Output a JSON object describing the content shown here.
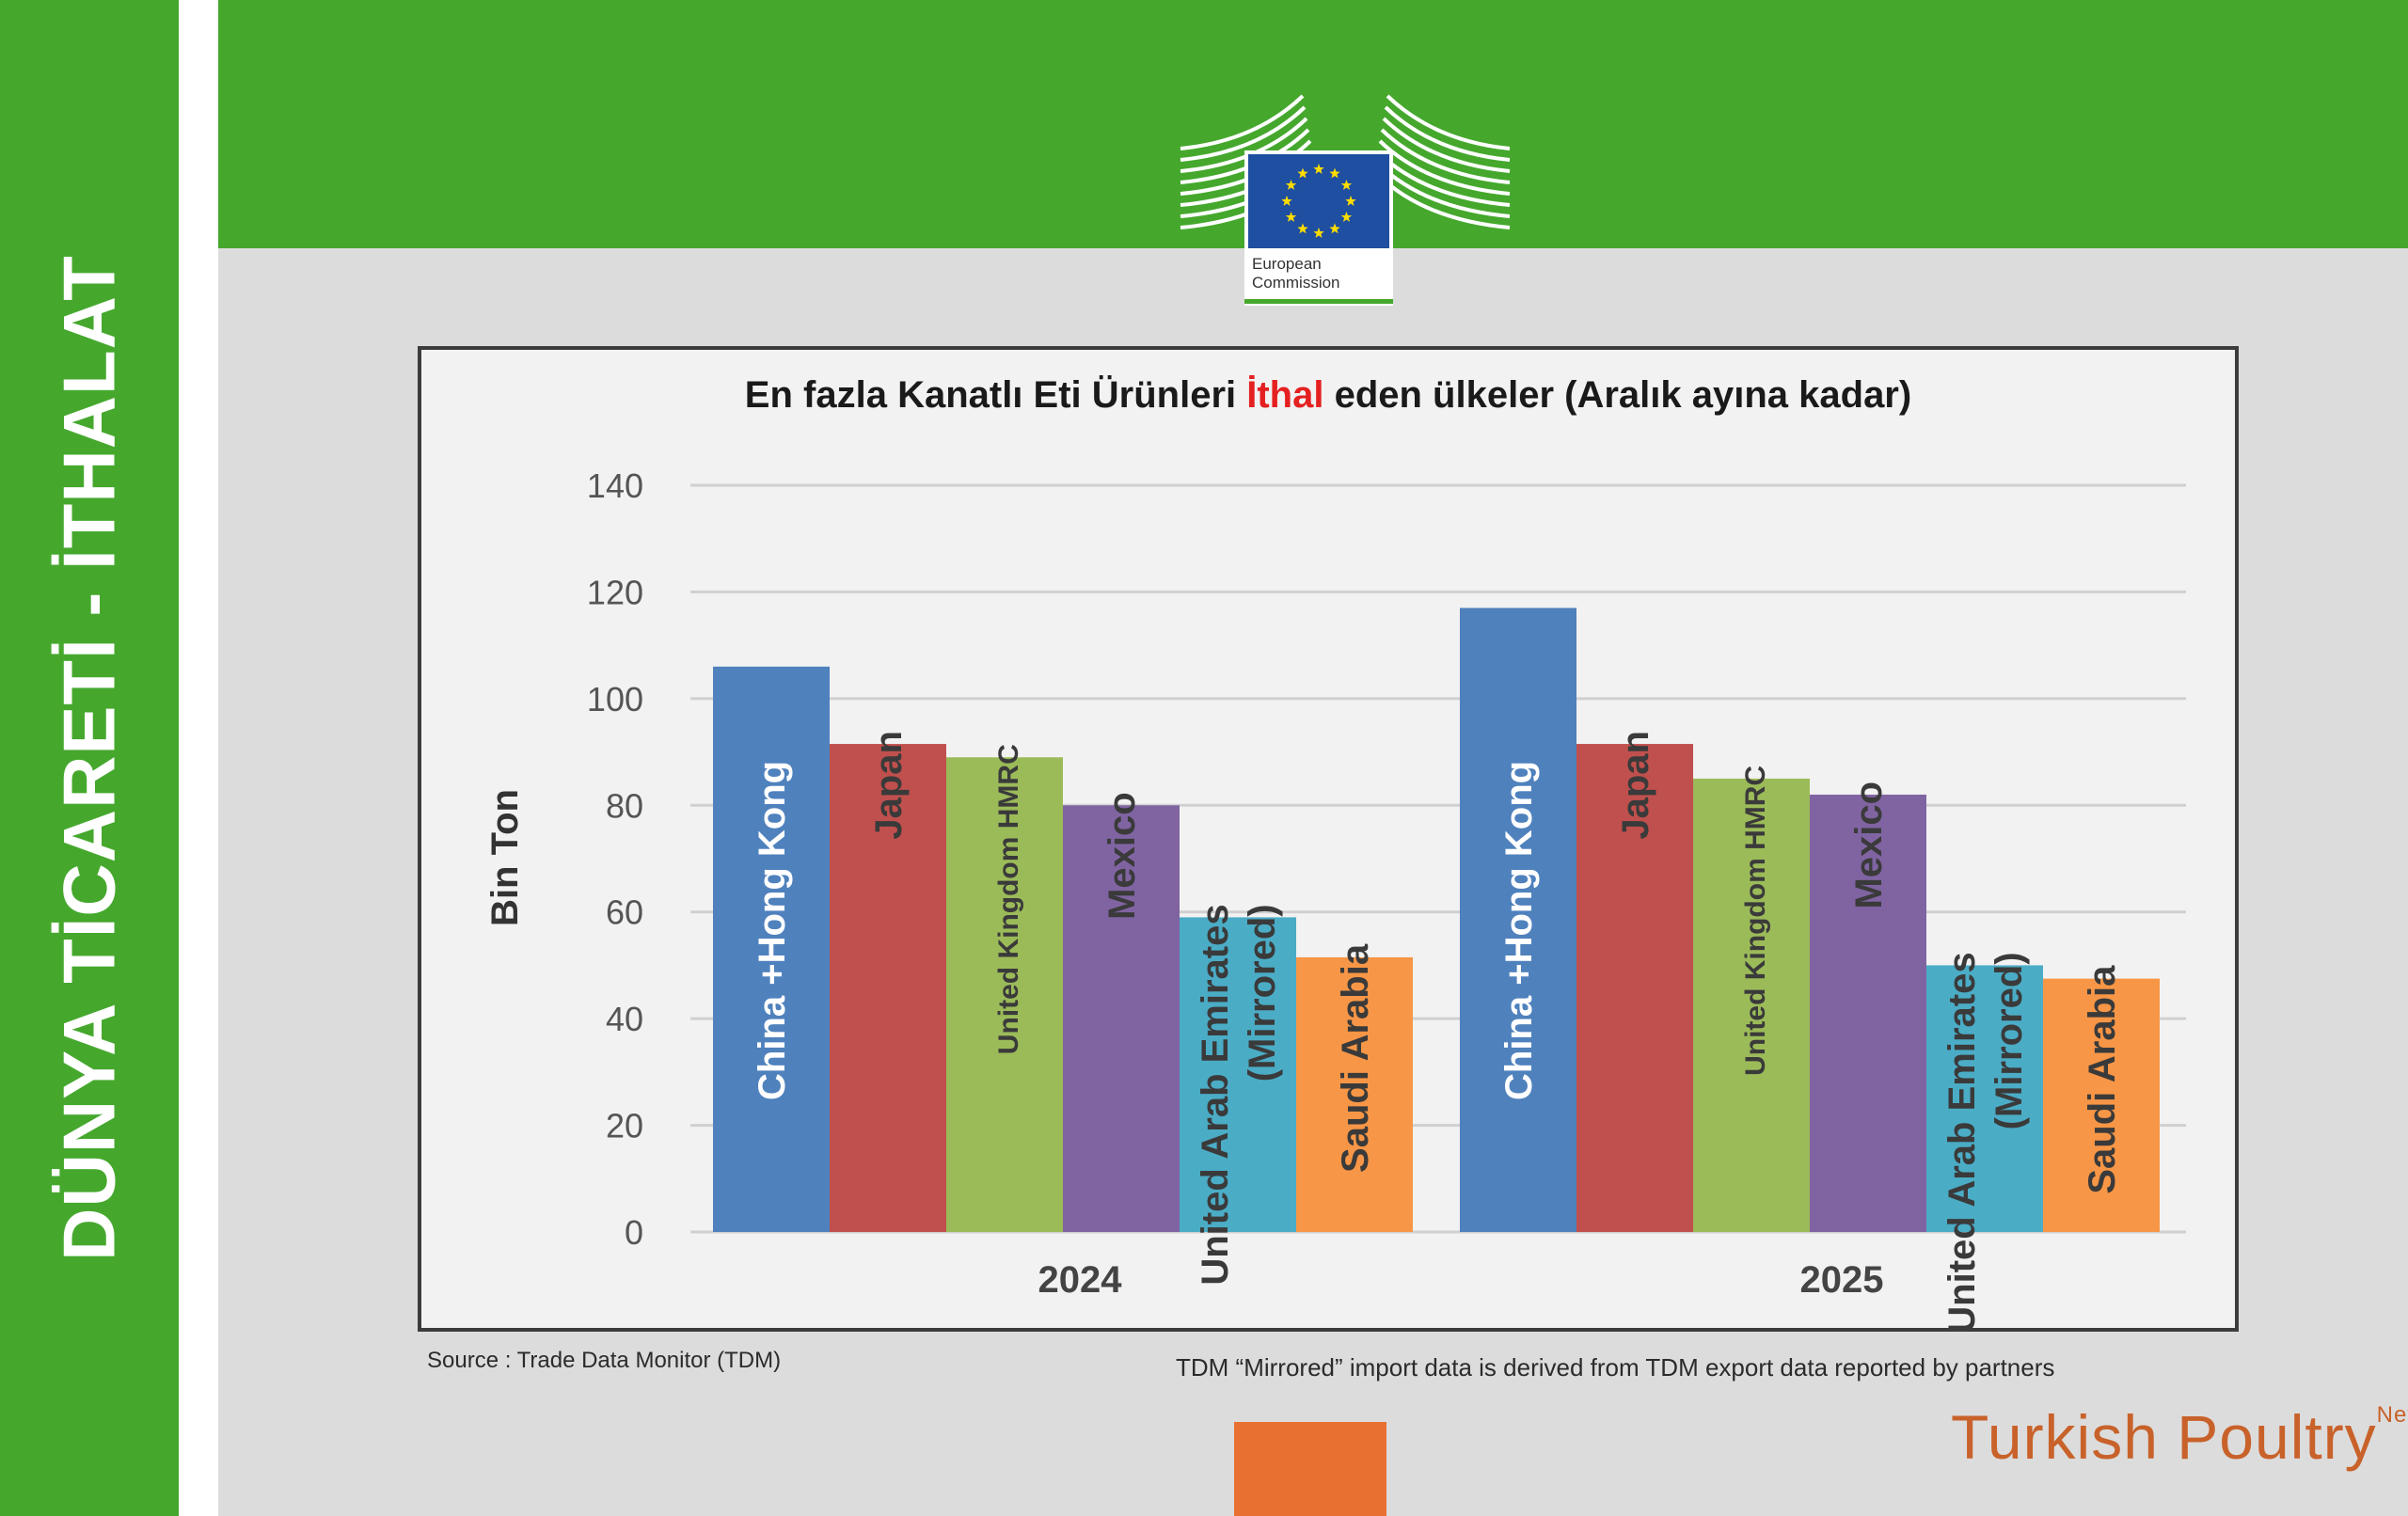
{
  "sidebar": {
    "title": "DÜNYA TİCARETİ - İTHALAT"
  },
  "logo": {
    "name": "European Commission",
    "line1": "European",
    "line2": "Commission"
  },
  "chart": {
    "title_part1": "En fazla Kanatlı Eti Ürünleri ",
    "title_highlight": "İthal",
    "title_part2": " eden ülkeler (Aralık ayına kadar)"
  },
  "chart_data": {
    "type": "bar",
    "title": "En fazla Kanatlı Eti Ürünleri İthal eden ülkeler (Aralık ayına kadar)",
    "ylabel": "Bin Ton",
    "xlabel": "",
    "ylim": [
      0,
      140
    ],
    "yticks": [
      0,
      20,
      40,
      60,
      80,
      100,
      120,
      140
    ],
    "grid": true,
    "categories": [
      "2024",
      "2025"
    ],
    "series": [
      {
        "name": "China +Hong Kong",
        "lines": [
          "China +Hong Kong"
        ],
        "values": [
          106,
          117
        ],
        "color": "#4f81bd"
      },
      {
        "name": "Japan",
        "lines": [
          "Japan"
        ],
        "values": [
          91.5,
          91.5
        ],
        "color": "#c0504d"
      },
      {
        "name": "United Kingdom HMRC",
        "lines": [
          "United Kingdom HMRC"
        ],
        "values": [
          89,
          85
        ],
        "color": "#9bbb59"
      },
      {
        "name": "Mexico",
        "lines": [
          "Mexico"
        ],
        "values": [
          80,
          82
        ],
        "color": "#8064a2"
      },
      {
        "name": "United Arab Emirates (Mirrored)",
        "lines": [
          "United Arab Emirates",
          "(Mirrored)"
        ],
        "values": [
          59,
          50
        ],
        "color": "#4bacc6"
      },
      {
        "name": "Saudi Arabia",
        "lines": [
          "Saudi Arabia"
        ],
        "values": [
          51.5,
          47.5
        ],
        "color": "#f79646"
      }
    ]
  },
  "footer": {
    "source": "Source : Trade Data Monitor (TDM)",
    "note": "TDM “Mirrored” import data is derived from TDM export data reported by partners"
  },
  "brand": {
    "name": "Turkish Poultry",
    "suffix": "Net"
  },
  "colors": {
    "green": "#45a82d",
    "accent_red": "#e52020",
    "brand_orange": "#c8622a",
    "eu_blue": "#1f4fa0",
    "eu_star": "#ffdd00"
  }
}
